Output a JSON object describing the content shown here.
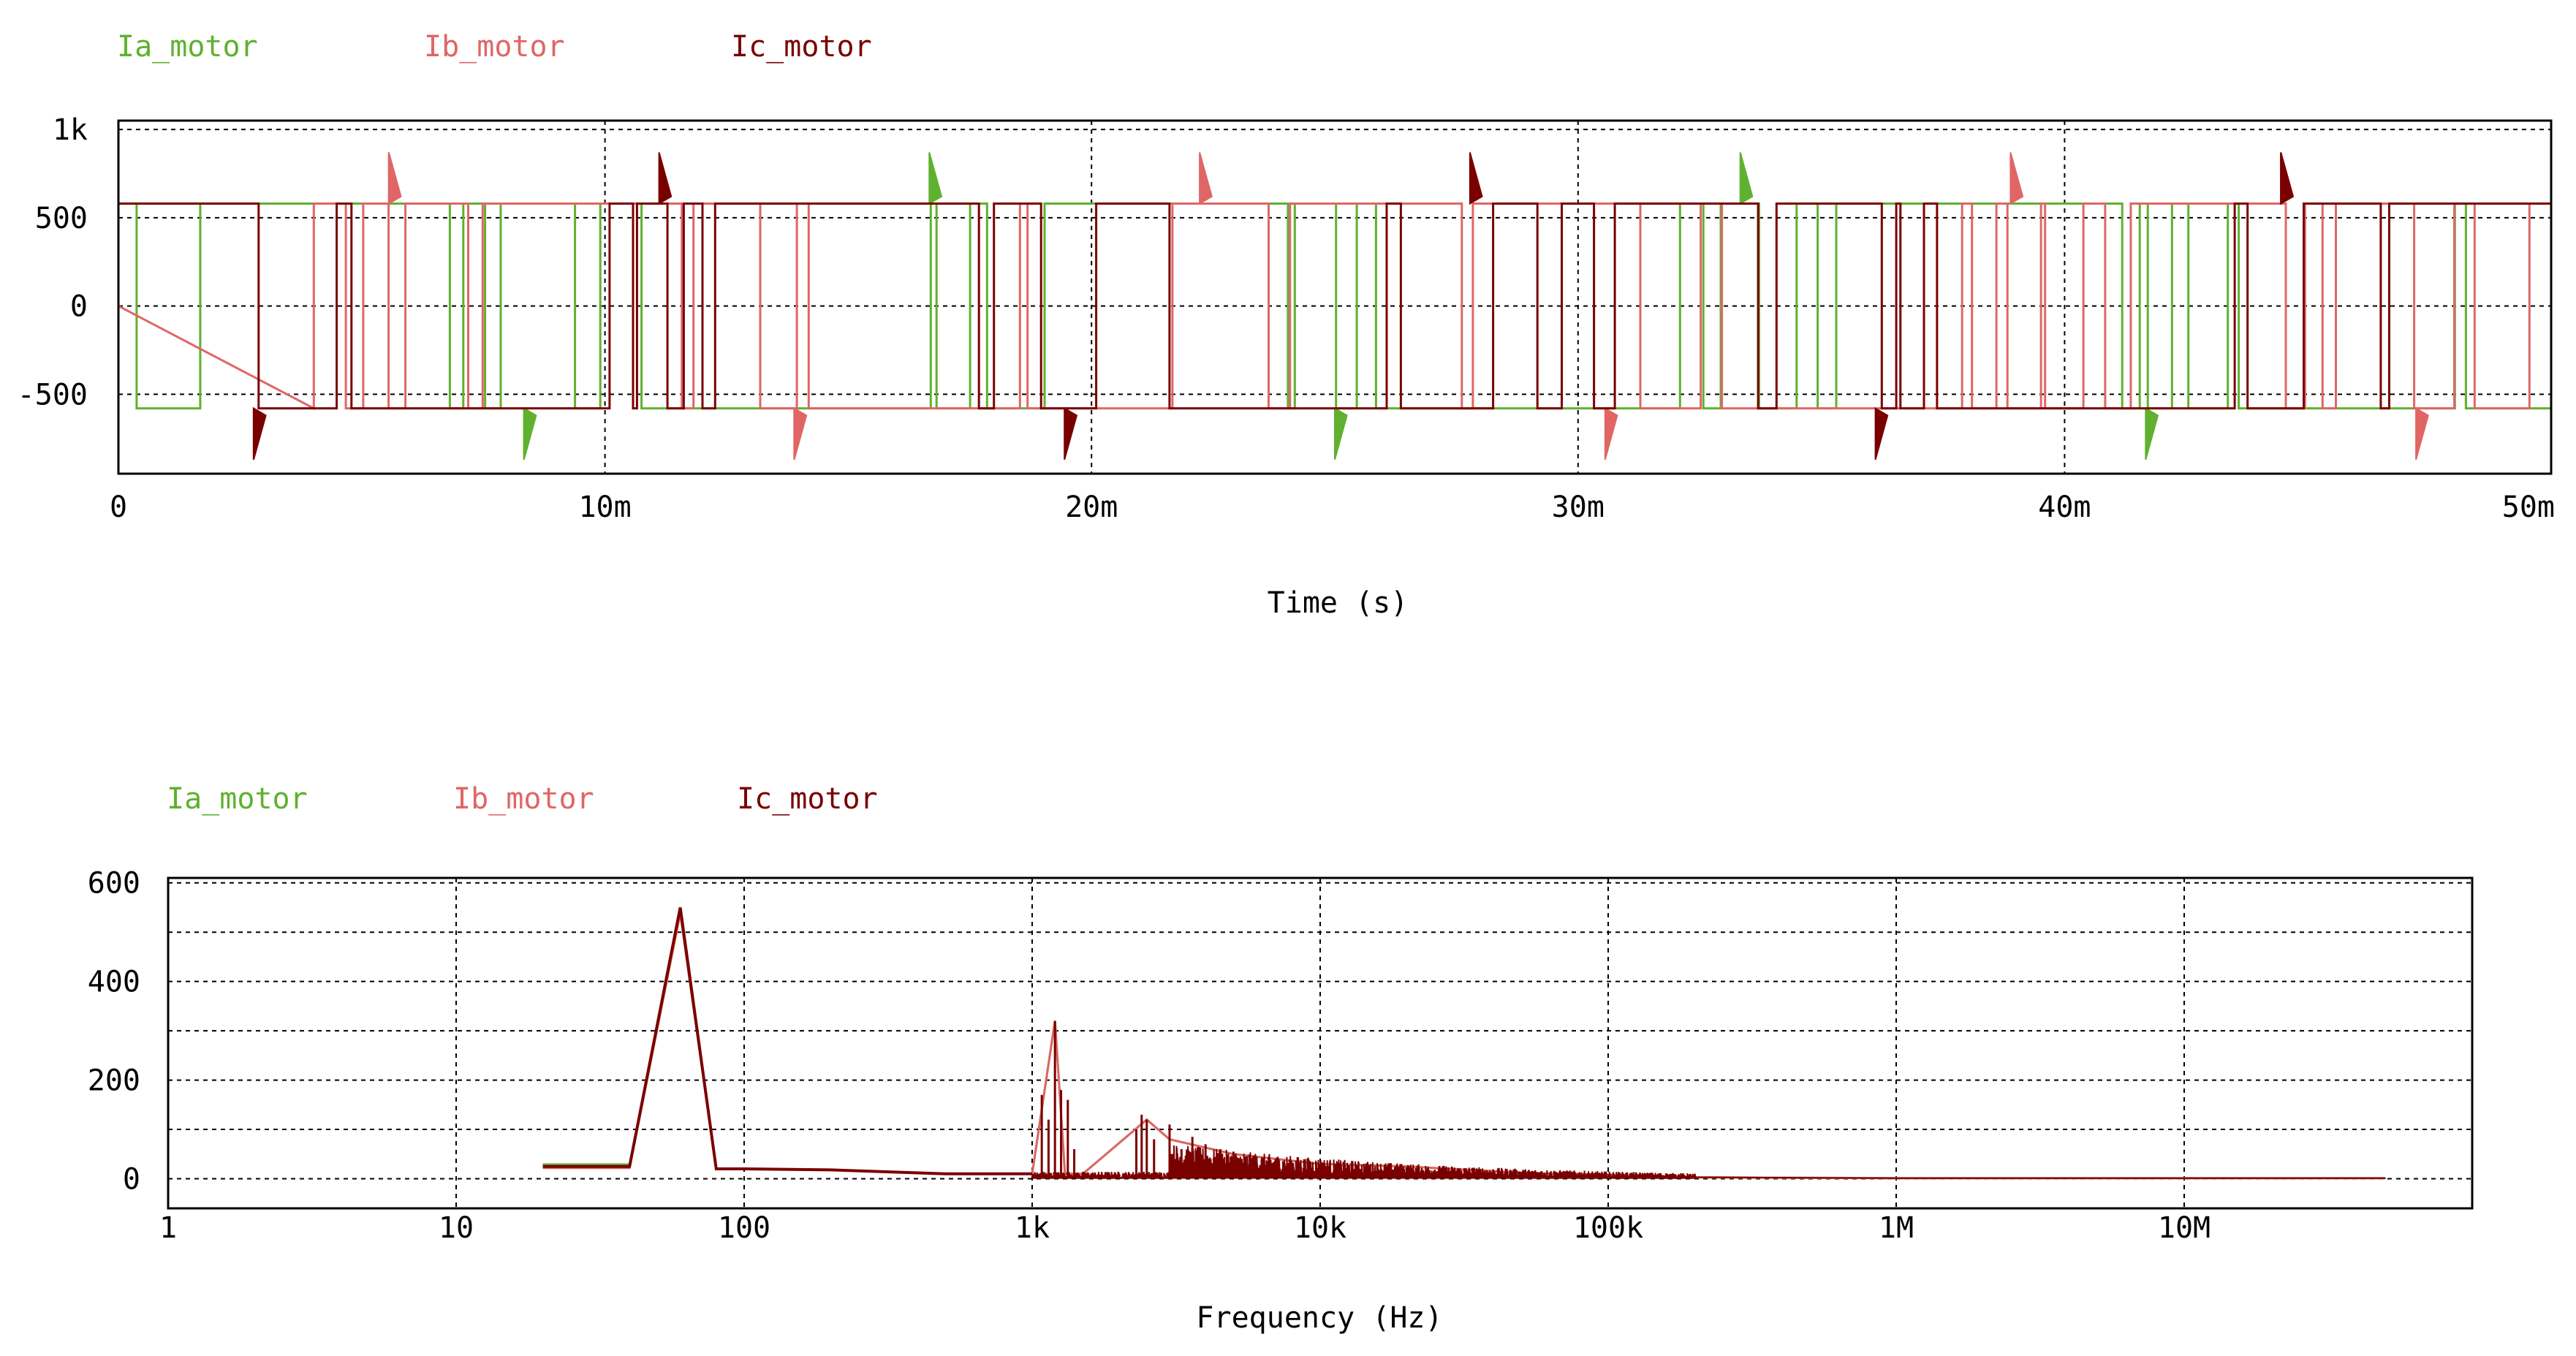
{
  "chart_data": [
    {
      "type": "line",
      "legend": [
        {
          "name": "Ia_motor",
          "color": "#5fb12f"
        },
        {
          "name": "Ib_motor",
          "color": "#e06666"
        },
        {
          "name": "Ic_motor",
          "color": "#7a0000"
        }
      ],
      "xlabel": "Time (s)",
      "ylabel": "",
      "xlim": [
        0,
        0.05
      ],
      "ylim": [
        -950,
        1050
      ],
      "x_ticks": [
        {
          "v": 0,
          "label": "0"
        },
        {
          "v": 0.01,
          "label": "10m"
        },
        {
          "v": 0.02,
          "label": "20m"
        },
        {
          "v": 0.03,
          "label": "30m"
        },
        {
          "v": 0.04,
          "label": "40m"
        },
        {
          "v": 0.05,
          "label": "50m"
        }
      ],
      "y_ticks": [
        {
          "v": 1000,
          "label": "1k"
        },
        {
          "v": 500,
          "label": "500"
        },
        {
          "v": 0,
          "label": "0"
        },
        {
          "v": -500,
          "label": "-500"
        }
      ],
      "grid": true,
      "legend_position": "top-left",
      "series": [
        {
          "name": "Ia_motor",
          "color": "#5fb12f",
          "description_values": {
            "high_level": 580,
            "low_level": -580,
            "spike_peak": 870,
            "fundamental_hz": 60
          }
        },
        {
          "name": "Ib_motor",
          "color": "#e06666",
          "description_values": {
            "high_level": 580,
            "low_level": -580,
            "spike_peak": 870,
            "fundamental_hz": 60
          }
        },
        {
          "name": "Ic_motor",
          "color": "#7a0000",
          "description_values": {
            "high_level": 580,
            "low_level": -580,
            "spike_peak": 870,
            "fundamental_hz": 60
          }
        }
      ]
    },
    {
      "type": "line",
      "x_scale": "log",
      "legend": [
        {
          "name": "Ia_motor",
          "color": "#5fb12f"
        },
        {
          "name": "Ib_motor",
          "color": "#e06666"
        },
        {
          "name": "Ic_motor",
          "color": "#7a0000"
        }
      ],
      "xlabel": "Frequency (Hz)",
      "ylabel": "",
      "xlim": [
        1,
        100000000
      ],
      "ylim": [
        -60,
        610
      ],
      "x_ticks": [
        {
          "v": 1,
          "label": "1"
        },
        {
          "v": 10,
          "label": "10"
        },
        {
          "v": 100,
          "label": "100"
        },
        {
          "v": 1000,
          "label": "1k"
        },
        {
          "v": 10000,
          "label": "10k"
        },
        {
          "v": 100000,
          "label": "100k"
        },
        {
          "v": 1000000,
          "label": "1M"
        },
        {
          "v": 10000000,
          "label": "10M"
        }
      ],
      "y_ticks": [
        {
          "v": 600,
          "label": "600"
        },
        {
          "v": 400,
          "label": "400"
        },
        {
          "v": 200,
          "label": "200"
        },
        {
          "v": 0,
          "label": "0"
        }
      ],
      "grid": true,
      "legend_position": "top-left",
      "series": [
        {
          "name": "Ic_motor",
          "color": "#7a0000",
          "x": [
            20,
            40,
            60,
            80,
            100,
            200,
            500,
            800,
            1000,
            1200,
            1300,
            1500,
            2500,
            3000,
            5000,
            10000,
            20000,
            50000,
            100000,
            200000,
            1000000,
            10000000,
            50000000
          ],
          "y": [
            25,
            25,
            550,
            20,
            20,
            18,
            10,
            10,
            10,
            320,
            10,
            10,
            120,
            80,
            50,
            30,
            25,
            12,
            8,
            3,
            1,
            1,
            1
          ]
        }
      ]
    }
  ]
}
